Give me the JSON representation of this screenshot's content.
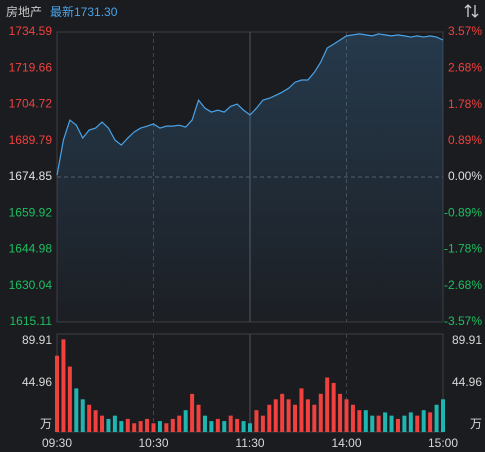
{
  "chart_data": [
    {
      "type": "line",
      "title": "房地产",
      "subtitle": "最新1731.30",
      "x": [
        0,
        4,
        8,
        12,
        16,
        20,
        24,
        28,
        32,
        36,
        40,
        44,
        48,
        52,
        56,
        60,
        64,
        68,
        72,
        76,
        80,
        84,
        88,
        92,
        96,
        100,
        104,
        108,
        112,
        116,
        120,
        124,
        128,
        132,
        136,
        140,
        144,
        148,
        152,
        156,
        160,
        164,
        168,
        172,
        176,
        180,
        184,
        188,
        192,
        196,
        200,
        204,
        208,
        212,
        216,
        220,
        224,
        228,
        232,
        236,
        240
      ],
      "series": [
        {
          "color": "#4aa3e8",
          "values": [
            1675.6,
            1690.1,
            1698.3,
            1696.2,
            1690.9,
            1694.2,
            1695,
            1697.5,
            1695,
            1690.1,
            1688,
            1690.9,
            1693.4,
            1695,
            1695.8,
            1696.7,
            1695,
            1695.8,
            1695.8,
            1696.2,
            1695.4,
            1698.3,
            1706.5,
            1703.2,
            1701.6,
            1702.4,
            1701.6,
            1704,
            1704.9,
            1702.4,
            1700.4,
            1703.2,
            1706.5,
            1707.3,
            1708.5,
            1709.8,
            1711.4,
            1713.9,
            1714.8,
            1714.8,
            1718,
            1722.2,
            1728,
            1729.6,
            1731.3,
            1733,
            1733.4,
            1733.8,
            1733.4,
            1733,
            1733.8,
            1733.4,
            1733,
            1733.4,
            1733,
            1732.5,
            1733,
            1732.5,
            1733,
            1732.5,
            1731.3
          ]
        }
      ],
      "ylim": [
        1615.11,
        1734.59
      ],
      "yticks": [
        1734.59,
        1719.66,
        1704.72,
        1689.79,
        1674.85,
        1659.92,
        1644.98,
        1630.04,
        1615.11
      ],
      "y2lim": [
        -3.57,
        3.57
      ],
      "y2ticks": [
        {
          "value": 3.57,
          "label": "3.57%"
        },
        {
          "value": 2.68,
          "label": "2.68%"
        },
        {
          "value": 1.78,
          "label": "1.78%"
        },
        {
          "value": 0.89,
          "label": "0.89%"
        },
        {
          "value": 0,
          "label": "0.00%"
        },
        {
          "value": -0.89,
          "label": "-0.89%"
        },
        {
          "value": -1.78,
          "label": "-1.78%"
        },
        {
          "value": -2.68,
          "label": "-2.68%"
        },
        {
          "value": -3.57,
          "label": "-3.57%"
        }
      ],
      "up_color": "#f0413e",
      "down_color": "#1dbf60",
      "flat_color": "#e0e0e0"
    },
    {
      "type": "bar",
      "unit": "万",
      "x": [
        0,
        4,
        8,
        12,
        16,
        20,
        24,
        28,
        32,
        36,
        40,
        44,
        48,
        52,
        56,
        60,
        64,
        68,
        72,
        76,
        80,
        84,
        88,
        92,
        96,
        100,
        104,
        108,
        112,
        116,
        120,
        124,
        128,
        132,
        136,
        140,
        144,
        148,
        152,
        156,
        160,
        164,
        168,
        172,
        176,
        180,
        184,
        188,
        192,
        196,
        200,
        204,
        208,
        212,
        216,
        220,
        224,
        228,
        232,
        236,
        240
      ],
      "values": [
        70,
        85,
        60,
        40,
        30,
        25,
        20,
        15,
        12,
        15,
        10,
        12,
        8,
        10,
        12,
        8,
        10,
        8,
        12,
        15,
        20,
        35,
        25,
        15,
        10,
        12,
        10,
        15,
        12,
        10,
        8,
        20,
        15,
        25,
        30,
        35,
        30,
        25,
        40,
        30,
        25,
        35,
        50,
        45,
        35,
        30,
        25,
        20,
        20,
        15,
        15,
        18,
        15,
        12,
        15,
        18,
        15,
        20,
        18,
        25,
        30
      ],
      "xlim": [
        0,
        240
      ],
      "xticks": [
        {
          "value": 0,
          "label": "09:30"
        },
        {
          "value": 60,
          "label": "10:30"
        },
        {
          "value": 120,
          "label": "11:30"
        },
        {
          "value": 180,
          "label": "14:00"
        },
        {
          "value": 240,
          "label": "15:00"
        }
      ],
      "ylim": [
        0,
        89.91
      ],
      "yticks": [
        89.91,
        44.96
      ],
      "up_color": "#f0413e",
      "down_color": "#1fb5b0"
    }
  ]
}
